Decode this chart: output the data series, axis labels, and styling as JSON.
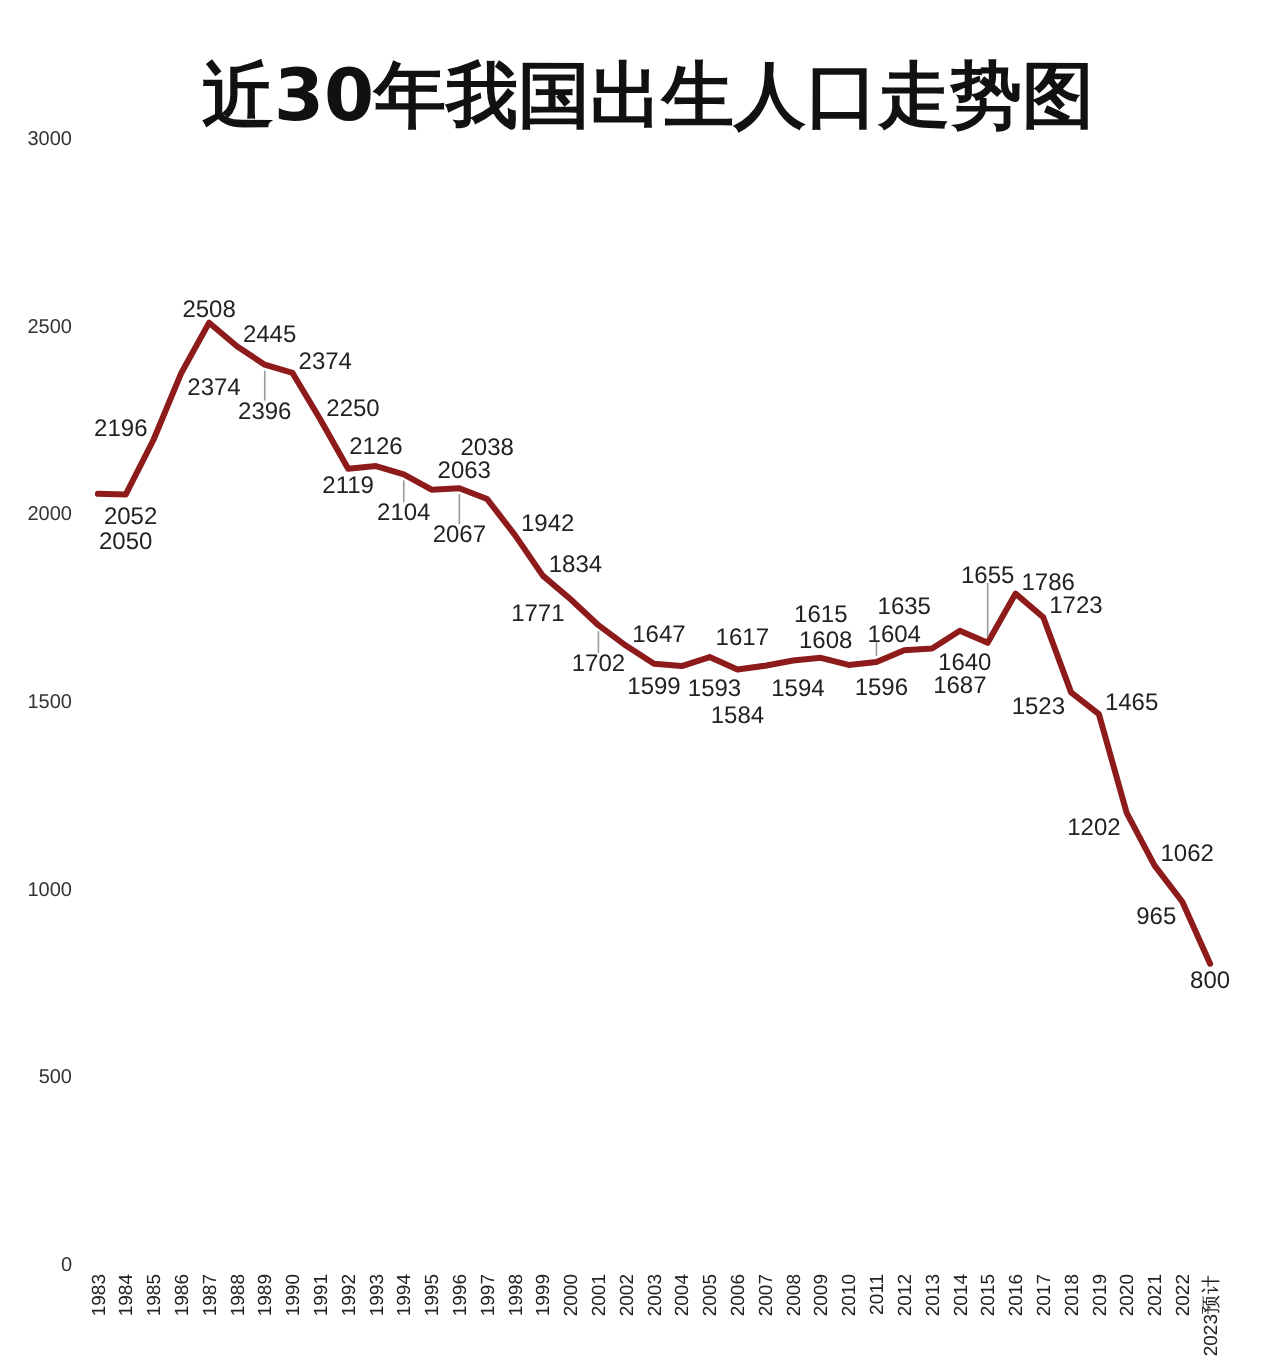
{
  "chart_data": {
    "type": "line",
    "title": "近30年我国出生人口走势图",
    "categories": [
      "1983",
      "1984",
      "1985",
      "1986",
      "1987",
      "1988",
      "1989",
      "1990",
      "1991",
      "1992",
      "1993",
      "1994",
      "1995",
      "1996",
      "1997",
      "1998",
      "1999",
      "2000",
      "2001",
      "2002",
      "2003",
      "2004",
      "2005",
      "2006",
      "2007",
      "2008",
      "2009",
      "2010",
      "2011",
      "2012",
      "2013",
      "2014",
      "2015",
      "2016",
      "2017",
      "2018",
      "2019",
      "2020",
      "2021",
      "2022",
      "2023预计"
    ],
    "values": [
      2052,
      2050,
      2196,
      2374,
      2508,
      2445,
      2396,
      2374,
      2250,
      2119,
      2126,
      2104,
      2063,
      2067,
      2038,
      1942,
      1834,
      1771,
      1702,
      1647,
      1599,
      1593,
      1617,
      1584,
      1594,
      1608,
      1615,
      1596,
      1604,
      1635,
      1640,
      1687,
      1655,
      1786,
      1723,
      1523,
      1465,
      1202,
      1062,
      965,
      800
    ],
    "color": "#8e1b1b",
    "data_labels": true,
    "ylim": [
      0,
      3000
    ],
    "yticks": [
      0,
      500,
      1000,
      1500,
      2000,
      2500,
      3000
    ]
  }
}
